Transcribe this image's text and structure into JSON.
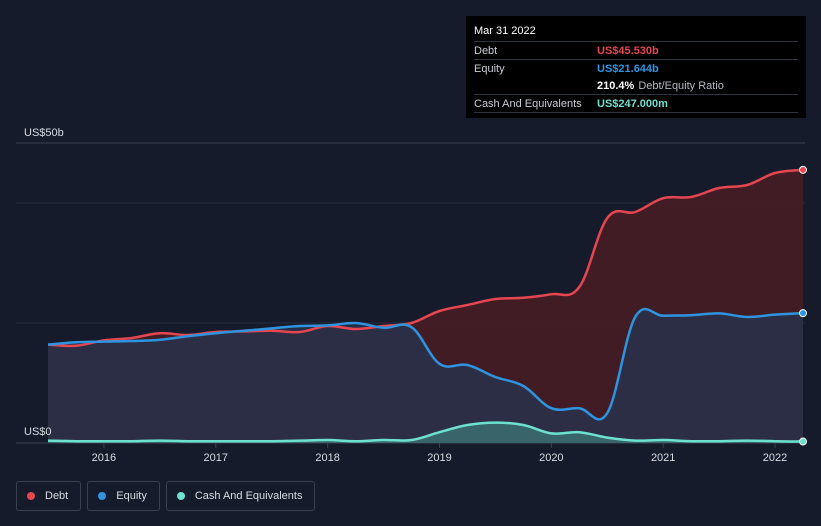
{
  "tooltip": {
    "date": "Mar 31 2022",
    "debt_label": "Debt",
    "debt_value": "US$45.530b",
    "equity_label": "Equity",
    "equity_value": "US$21.644b",
    "ratio_value": "210.4%",
    "ratio_label": "Debt/Equity Ratio",
    "cash_label": "Cash And Equivalents",
    "cash_value": "US$247.000m"
  },
  "colors": {
    "debt": "#e64650",
    "equity": "#2e94e0",
    "cash": "#6de0cf",
    "debt_fill": "#4a1c24",
    "equity_fill": "#253450",
    "background": "#151b2b"
  },
  "legend": [
    {
      "label": "Debt",
      "color": "#e64650"
    },
    {
      "label": "Equity",
      "color": "#2e94e0"
    },
    {
      "label": "Cash And Equivalents",
      "color": "#6de0cf"
    }
  ],
  "chart_data": {
    "type": "area",
    "title": "",
    "xlabel": "",
    "ylabel": "",
    "y_top_label": "US$50b",
    "y_bottom_label": "US$0",
    "ylim": [
      0,
      50
    ],
    "xlim": [
      2015.5,
      2022.25
    ],
    "x_ticks": [
      2016,
      2017,
      2018,
      2019,
      2020,
      2021,
      2022
    ],
    "x_tick_labels": [
      "2016",
      "2017",
      "2018",
      "2019",
      "2020",
      "2021",
      "2022"
    ],
    "gridlines": [
      30,
      50
    ],
    "series": [
      {
        "name": "Debt",
        "x": [
          2015.5,
          2015.75,
          2016.0,
          2016.25,
          2016.5,
          2016.75,
          2017.0,
          2017.25,
          2017.5,
          2017.75,
          2018.0,
          2018.25,
          2018.5,
          2018.75,
          2019.0,
          2019.25,
          2019.5,
          2019.75,
          2020.0,
          2020.25,
          2020.5,
          2020.75,
          2021.0,
          2021.25,
          2021.5,
          2021.75,
          2022.0,
          2022.25
        ],
        "values": [
          16.4,
          16.2,
          17.1,
          17.5,
          18.3,
          18.0,
          18.5,
          18.6,
          18.7,
          18.5,
          19.5,
          19.0,
          19.5,
          20.0,
          22.0,
          23.0,
          24.0,
          24.2,
          24.8,
          26.0,
          37.5,
          38.5,
          40.8,
          41.0,
          42.5,
          43.0,
          45.0,
          45.53
        ]
      },
      {
        "name": "Equity",
        "x": [
          2015.5,
          2015.75,
          2016.0,
          2016.25,
          2016.5,
          2016.75,
          2017.0,
          2017.25,
          2017.5,
          2017.75,
          2018.0,
          2018.25,
          2018.5,
          2018.75,
          2019.0,
          2019.25,
          2019.5,
          2019.75,
          2020.0,
          2020.25,
          2020.5,
          2020.75,
          2021.0,
          2021.25,
          2021.5,
          2021.75,
          2022.0,
          2022.25
        ],
        "values": [
          16.4,
          16.8,
          16.9,
          17.0,
          17.2,
          17.8,
          18.3,
          18.7,
          19.1,
          19.5,
          19.6,
          20.0,
          19.2,
          19.3,
          13.2,
          13.0,
          11.0,
          9.5,
          5.8,
          5.8,
          5.0,
          21.0,
          21.2,
          21.3,
          21.6,
          21.0,
          21.4,
          21.644
        ]
      },
      {
        "name": "Cash And Equivalents",
        "x": [
          2015.5,
          2015.75,
          2016.0,
          2016.25,
          2016.5,
          2016.75,
          2017.0,
          2017.25,
          2017.5,
          2017.75,
          2018.0,
          2018.25,
          2018.5,
          2018.75,
          2019.0,
          2019.25,
          2019.5,
          2019.75,
          2020.0,
          2020.25,
          2020.5,
          2020.75,
          2021.0,
          2021.25,
          2021.5,
          2021.75,
          2022.0,
          2022.25
        ],
        "values": [
          0.4,
          0.3,
          0.3,
          0.3,
          0.4,
          0.3,
          0.3,
          0.3,
          0.3,
          0.4,
          0.5,
          0.3,
          0.5,
          0.5,
          1.8,
          3.0,
          3.4,
          3.0,
          1.6,
          1.8,
          0.9,
          0.4,
          0.5,
          0.3,
          0.3,
          0.4,
          0.3,
          0.247
        ]
      }
    ]
  }
}
